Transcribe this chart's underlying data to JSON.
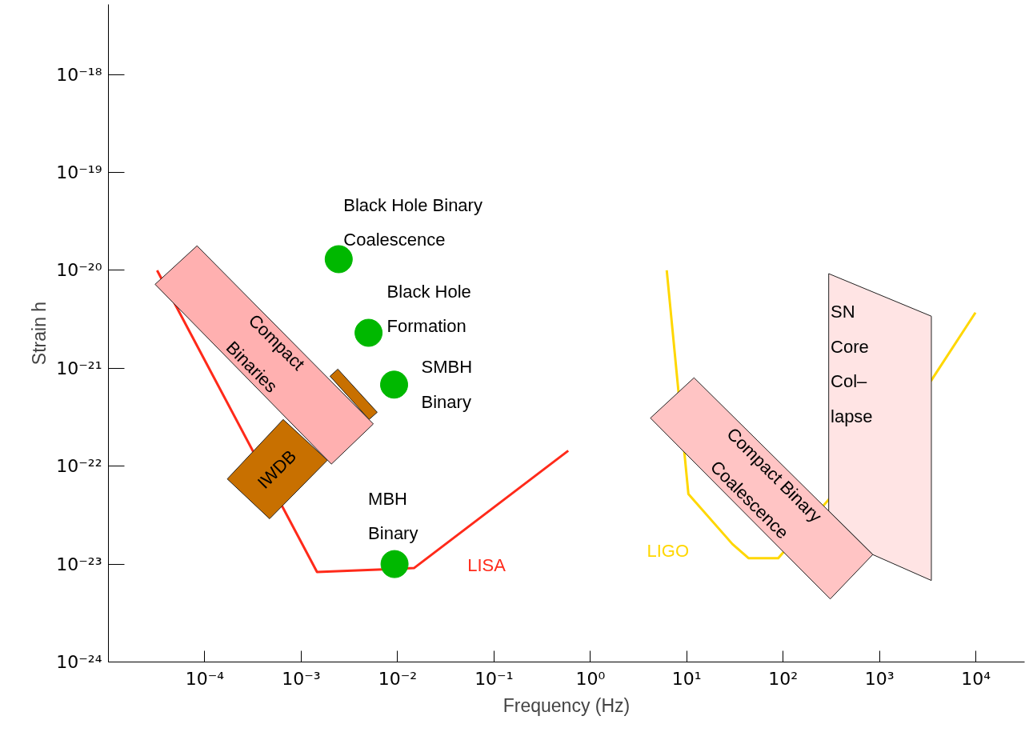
{
  "chart_data": {
    "type": "line",
    "xlabel": "Frequency (Hz)",
    "ylabel": "Strain h",
    "log": "xy",
    "grid": false,
    "xlim": [
      1e-05,
      32000.0
    ],
    "ylim": [
      1e-24,
      5.2e-18
    ],
    "xticks": [
      {
        "value": 0.0001,
        "label": "10⁻⁴"
      },
      {
        "value": 0.001,
        "label": "10⁻³"
      },
      {
        "value": 0.01,
        "label": "10⁻²"
      },
      {
        "value": 0.1,
        "label": "10⁻¹"
      },
      {
        "value": 1,
        "label": "10⁰"
      },
      {
        "value": 10,
        "label": "10¹"
      },
      {
        "value": 100,
        "label": "10²"
      },
      {
        "value": 1000,
        "label": "10³"
      },
      {
        "value": 10000,
        "label": "10⁴"
      }
    ],
    "yticks": [
      {
        "value": 1e-24,
        "label": "10⁻²⁴"
      },
      {
        "value": 1e-23,
        "label": "10⁻²³"
      },
      {
        "value": 1e-22,
        "label": "10⁻²²"
      },
      {
        "value": 1e-21,
        "label": "10⁻²¹"
      },
      {
        "value": 1e-20,
        "label": "10⁻²⁰"
      },
      {
        "value": 1e-19,
        "label": "10⁻¹⁹"
      },
      {
        "value": 1e-18,
        "label": "10⁻¹⁸"
      }
    ],
    "series": [
      {
        "name": "LISA",
        "color": "#ff2a1a",
        "x": [
          3.2e-05,
          0.00146,
          0.0148,
          0.59
        ],
        "values": [
          1e-20,
          8.3e-24,
          9.1e-24,
          1.44e-22
        ]
      },
      {
        "name": "LIGO",
        "color": "#ffd700",
        "x": [
          6.2,
          10.4,
          29.8,
          43.7,
          89,
          3470,
          9890
        ],
        "values": [
          1e-20,
          5.2e-23,
          1.6e-23,
          1.15e-23,
          1.15e-23,
          7.6e-22,
          3.7e-21
        ]
      },
      {
        "type": "area",
        "color": "#c87000",
        "x": [
          0.000171,
          0.00047,
          0.00187,
          0.00065
        ],
        "values": [
          7.4e-23,
          2.9e-23,
          1.15e-22,
          3e-22
        ]
      },
      {
        "type": "area",
        "color": "#c87000",
        "x": [
          0.00199,
          0.0024,
          0.00615,
          0.00507
        ],
        "values": [
          8.3e-22,
          9.8e-22,
          3.55e-22,
          3e-22
        ]
      },
      {
        "type": "area",
        "color": "#ffb0b0",
        "x": [
          3.05e-05,
          8.3e-05,
          0.0056,
          0.00206
        ],
        "values": [
          7.2e-21,
          1.78e-20,
          2.7e-22,
          1.05e-22
        ]
      },
      {
        "type": "area",
        "color": "#ffe4e4",
        "x": [
          297,
          3450,
          3450,
          851,
          297
        ],
        "values": [
          9.25e-21,
          3.4e-21,
          6.8e-24,
          1.25e-23,
          3.5e-23
        ]
      },
      {
        "type": "area",
        "color": "#ffc4c4",
        "x": [
          4.2,
          11.9,
          851,
          308
        ],
        "values": [
          3.1e-22,
          8e-22,
          1.25e-23,
          4.4e-24
        ]
      },
      {
        "type": "scatter",
        "marker": "circle",
        "color": "#00b800",
        "x": [
          0.00245,
          0.005,
          0.0092,
          0.0093
        ],
        "values": [
          1.3e-20,
          2.3e-21,
          6.8e-22,
          1e-23
        ]
      }
    ],
    "annotations": [
      "Black Hole Binary\nCoalescence",
      "Black Hole\nFormation",
      "SMBH\nBinary",
      "MBH\nBinary",
      "Compact\nBinaries",
      "IWDB",
      "Compact Binary\nCoalescence",
      "SN\nCore\nCol–\nlapse"
    ]
  }
}
